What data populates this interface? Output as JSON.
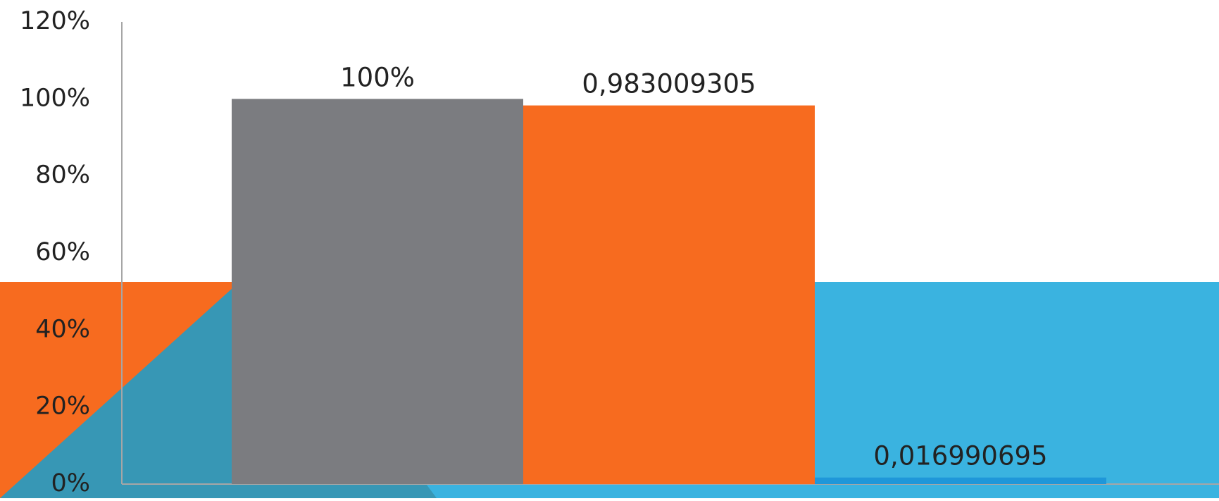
{
  "chart_data": {
    "type": "bar",
    "title": "",
    "xlabel": "",
    "ylabel": "",
    "ylim": [
      0,
      1.2
    ],
    "y_ticks": [
      {
        "value": 1.2,
        "label": "120%"
      },
      {
        "value": 1.0,
        "label": "100%"
      },
      {
        "value": 0.8,
        "label": "80%"
      },
      {
        "value": 0.6,
        "label": "60%"
      },
      {
        "value": 0.4,
        "label": "40%"
      },
      {
        "value": 0.2,
        "label": "20%"
      },
      {
        "value": 0.0,
        "label": "0%"
      }
    ],
    "grid": false,
    "legend": "none",
    "bars": [
      {
        "value": 1.0,
        "label": "100%",
        "color": "#7b7c80"
      },
      {
        "value": 0.983009305,
        "label": "0,983009305",
        "color": "#f76b1f"
      },
      {
        "value": 0.016990695,
        "label": "0,016990695",
        "color": "#1f97d9"
      }
    ]
  },
  "background": {
    "orange": "#f76b1f",
    "blue": "#3ab3e0",
    "teal": "#3797b5",
    "white": "#ffffff"
  },
  "axis_color": "#a6a6a6"
}
